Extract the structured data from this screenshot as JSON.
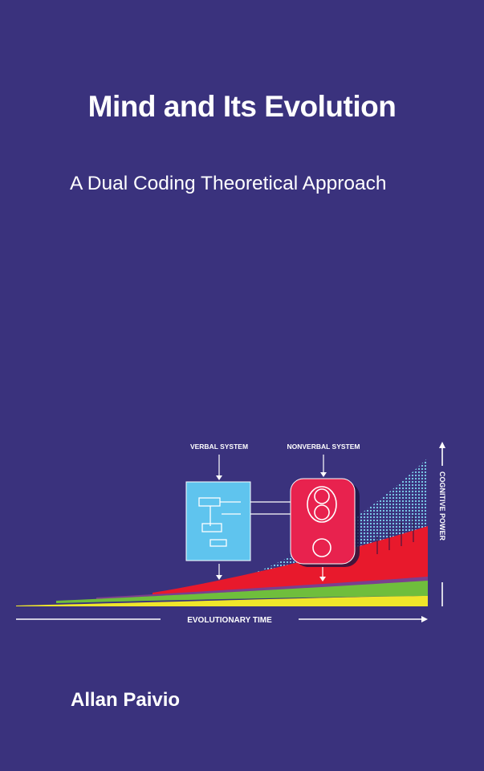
{
  "cover": {
    "title": "Mind and Its Evolution",
    "subtitle": "A Dual Coding Theoretical Approach",
    "author": "Allan Paivio",
    "background_color": "#3a327d"
  },
  "illustration": {
    "verbal_label": "VERBAL SYSTEM",
    "nonverbal_label": "NONVERBAL SYSTEM",
    "x_axis_label": "EVOLUTIONARY TIME",
    "y_axis_label": "COGNITIVE POWER",
    "colors": {
      "verbal_box": "#5fc4ee",
      "nonverbal_box": "#e8224e",
      "red_band": "#e8192c",
      "green_band": "#6fbe3c",
      "yellow_band": "#f0e62a",
      "purple_band": "#7a3f8f",
      "cyan_dots": "#7fd6f0"
    }
  }
}
